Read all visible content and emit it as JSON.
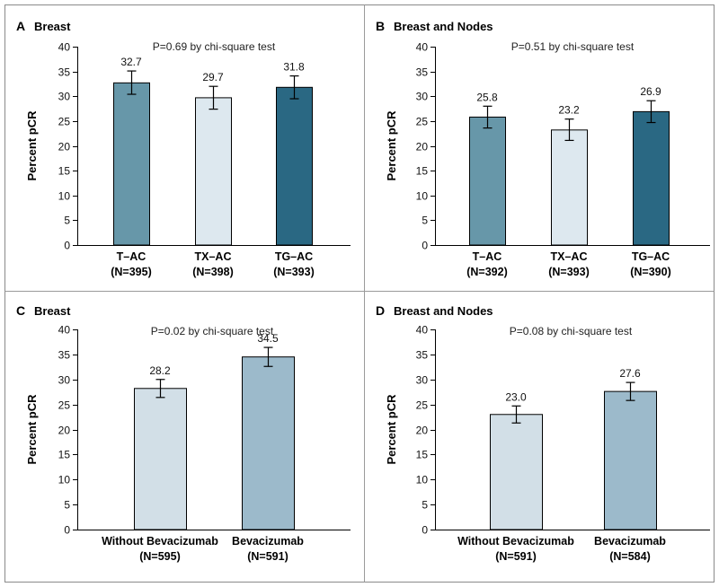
{
  "figure": {
    "colors": {
      "frame": "#8a8a8a",
      "divider": "#9a9a9a",
      "axis": "#000000",
      "bar_stroke": "#000000",
      "error": "#000000"
    }
  },
  "chart_data": [
    {
      "id": "A",
      "letter": "A",
      "title": "Breast",
      "pvalue_text": "P=0.69 by chi-square test",
      "type": "bar",
      "ylabel": "Percent pCR",
      "ylim": [
        0,
        40
      ],
      "yticks": [
        0,
        5,
        10,
        15,
        20,
        25,
        30,
        35,
        40
      ],
      "categories": [
        {
          "name": "T–AC",
          "n": "(N=395)",
          "value": 32.7,
          "label": "32.7",
          "err_low": 30.4,
          "err_high": 35.1,
          "color": "#6797a9"
        },
        {
          "name": "TX–AC",
          "n": "(N=398)",
          "value": 29.7,
          "label": "29.7",
          "err_low": 27.4,
          "err_high": 32.0,
          "color": "#dde8ef"
        },
        {
          "name": "TG–AC",
          "n": "(N=393)",
          "value": 31.8,
          "label": "31.8",
          "err_low": 29.5,
          "err_high": 34.1,
          "color": "#2a6883"
        }
      ]
    },
    {
      "id": "B",
      "letter": "B",
      "title": "Breast and Nodes",
      "pvalue_text": "P=0.51 by chi-square test",
      "type": "bar",
      "ylabel": "Percent pCR",
      "ylim": [
        0,
        40
      ],
      "yticks": [
        0,
        5,
        10,
        15,
        20,
        25,
        30,
        35,
        40
      ],
      "categories": [
        {
          "name": "T–AC",
          "n": "(N=392)",
          "value": 25.8,
          "label": "25.8",
          "err_low": 23.6,
          "err_high": 28.0,
          "color": "#6797a9"
        },
        {
          "name": "TX–AC",
          "n": "(N=393)",
          "value": 23.2,
          "label": "23.2",
          "err_low": 21.1,
          "err_high": 25.4,
          "color": "#dde8ef"
        },
        {
          "name": "TG–AC",
          "n": "(N=390)",
          "value": 26.9,
          "label": "26.9",
          "err_low": 24.7,
          "err_high": 29.1,
          "color": "#2a6883"
        }
      ]
    },
    {
      "id": "C",
      "letter": "C",
      "title": "Breast",
      "pvalue_text": "P=0.02 by chi-square test",
      "type": "bar",
      "ylabel": "Percent pCR",
      "ylim": [
        0,
        40
      ],
      "yticks": [
        0,
        5,
        10,
        15,
        20,
        25,
        30,
        35,
        40
      ],
      "categories": [
        {
          "name": "Without Bevacizumab",
          "n": "(N=595)",
          "value": 28.2,
          "label": "28.2",
          "err_low": 26.4,
          "err_high": 30.0,
          "color": "#d2dfe7"
        },
        {
          "name": "Bevacizumab",
          "n": "(N=591)",
          "value": 34.5,
          "label": "34.5",
          "err_low": 32.6,
          "err_high": 36.4,
          "color": "#9cbacb"
        }
      ]
    },
    {
      "id": "D",
      "letter": "D",
      "title": "Breast and Nodes",
      "pvalue_text": "P=0.08 by chi-square test",
      "type": "bar",
      "ylabel": "Percent pCR",
      "ylim": [
        0,
        40
      ],
      "yticks": [
        0,
        5,
        10,
        15,
        20,
        25,
        30,
        35,
        40
      ],
      "categories": [
        {
          "name": "Without Bevacizumab",
          "n": "(N=591)",
          "value": 23.0,
          "label": "23.0",
          "err_low": 21.3,
          "err_high": 24.7,
          "color": "#d2dfe7"
        },
        {
          "name": "Bevacizumab",
          "n": "(N=584)",
          "value": 27.6,
          "label": "27.6",
          "err_low": 25.8,
          "err_high": 29.4,
          "color": "#9cbacb"
        }
      ]
    }
  ]
}
